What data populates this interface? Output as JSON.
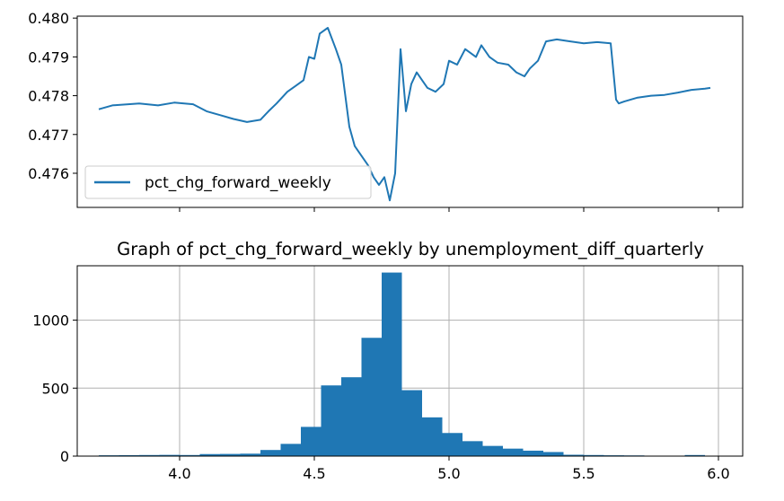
{
  "colors": {
    "series": "#1f77b4",
    "axis": "#000000",
    "grid": "#b0b0b0"
  },
  "chart_data": [
    {
      "type": "line",
      "title": "",
      "xlabel": "",
      "ylabel": "",
      "xlim": [
        3.62,
        6.09
      ],
      "ylim": [
        0.47512,
        0.48005
      ],
      "yticks": [
        0.476,
        0.477,
        0.478,
        0.479,
        0.48
      ],
      "ytick_labels": [
        "0.476",
        "0.477",
        "0.478",
        "0.479",
        "0.480"
      ],
      "xticks": [
        4.0,
        4.5,
        5.0,
        5.5,
        6.0
      ],
      "x_tick_labels_shown": false,
      "grid": false,
      "legend": "lower-left",
      "series": [
        {
          "name": "pct_chg_forward_weekly",
          "x": [
            3.7,
            3.75,
            3.85,
            3.92,
            3.98,
            4.05,
            4.1,
            4.15,
            4.2,
            4.25,
            4.3,
            4.33,
            4.36,
            4.4,
            4.43,
            4.46,
            4.48,
            4.5,
            4.52,
            4.55,
            4.58,
            4.6,
            4.63,
            4.65,
            4.68,
            4.7,
            4.72,
            4.74,
            4.76,
            4.78,
            4.8,
            4.82,
            4.84,
            4.86,
            4.88,
            4.9,
            4.92,
            4.95,
            4.98,
            5.0,
            5.03,
            5.06,
            5.1,
            5.12,
            5.15,
            5.18,
            5.22,
            5.25,
            5.28,
            5.3,
            5.33,
            5.36,
            5.4,
            5.45,
            5.5,
            5.55,
            5.6,
            5.62,
            5.63,
            5.65,
            5.7,
            5.75,
            5.8,
            5.85,
            5.9,
            5.95,
            5.97
          ],
          "y": [
            0.47765,
            0.47775,
            0.4778,
            0.47775,
            0.47782,
            0.47778,
            0.4776,
            0.4775,
            0.4774,
            0.47732,
            0.47738,
            0.4776,
            0.4778,
            0.4781,
            0.47825,
            0.4784,
            0.479,
            0.47895,
            0.4796,
            0.47975,
            0.4792,
            0.4788,
            0.4772,
            0.4767,
            0.4764,
            0.4762,
            0.4759,
            0.4757,
            0.4759,
            0.4753,
            0.476,
            0.4792,
            0.4776,
            0.4783,
            0.4786,
            0.4784,
            0.4782,
            0.4781,
            0.4783,
            0.4789,
            0.4788,
            0.4792,
            0.479,
            0.4793,
            0.479,
            0.47885,
            0.4788,
            0.4786,
            0.4785,
            0.4787,
            0.4789,
            0.4794,
            0.47945,
            0.4794,
            0.47935,
            0.47938,
            0.47935,
            0.4779,
            0.4778,
            0.47785,
            0.47795,
            0.478,
            0.47802,
            0.47808,
            0.47815,
            0.47818,
            0.4782
          ]
        }
      ]
    },
    {
      "type": "bar",
      "title": "Graph of pct_chg_forward_weekly by unemployment_diff_quarterly",
      "xlabel": "",
      "ylabel": "",
      "xlim": [
        3.62,
        6.09
      ],
      "ylim": [
        0,
        1400
      ],
      "yticks": [
        0,
        500,
        1000
      ],
      "ytick_labels": [
        "0",
        "500",
        "1000"
      ],
      "xticks": [
        4.0,
        4.5,
        5.0,
        5.5,
        6.0
      ],
      "xtick_labels": [
        "4.0",
        "4.5",
        "5.0",
        "5.5",
        "6.0"
      ],
      "grid": true,
      "bin_edges": [
        3.7,
        3.775,
        3.85,
        3.925,
        4.0,
        4.075,
        4.15,
        4.225,
        4.3,
        4.375,
        4.45,
        4.525,
        4.6,
        4.675,
        4.75,
        4.825,
        4.9,
        4.975,
        5.05,
        5.125,
        5.2,
        5.275,
        5.35,
        5.425,
        5.5,
        5.575,
        5.65,
        5.725,
        5.8,
        5.875,
        5.95,
        6.025
      ],
      "values": [
        6,
        7,
        8,
        9,
        8,
        15,
        16,
        18,
        45,
        90,
        215,
        520,
        580,
        870,
        1350,
        485,
        285,
        170,
        110,
        75,
        55,
        40,
        30,
        10,
        8,
        6,
        5,
        0,
        0,
        8,
        0
      ]
    }
  ]
}
